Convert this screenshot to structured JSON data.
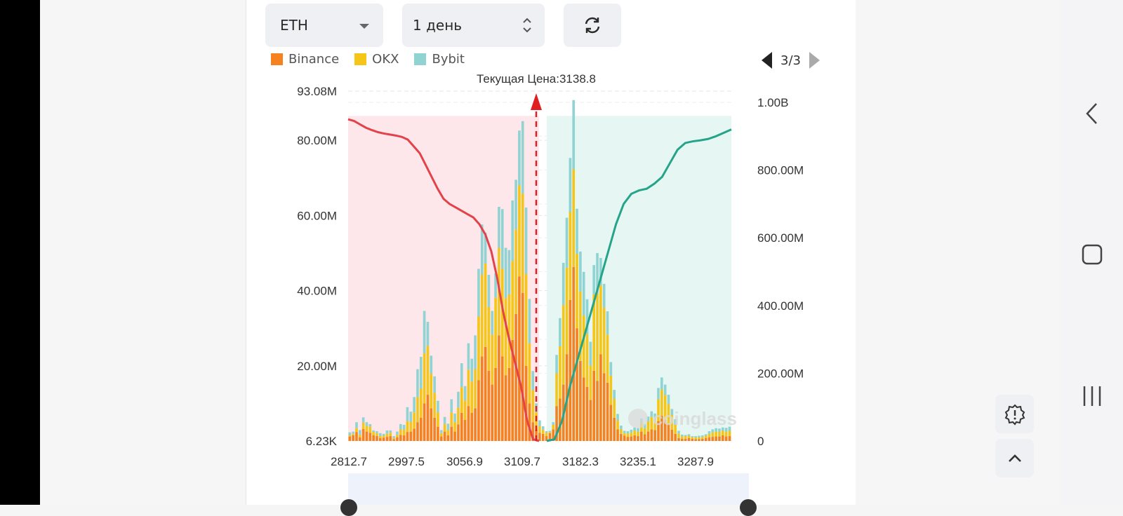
{
  "controls": {
    "coin": "ETH",
    "period": "1 день",
    "refresh_icon": "refresh-icon"
  },
  "legend": [
    {
      "name": "Binance",
      "color": "#f5821f"
    },
    {
      "name": "OKX",
      "color": "#f5c518"
    },
    {
      "name": "Bybit",
      "color": "#8fd3d3"
    }
  ],
  "pager": {
    "text": "3/3"
  },
  "chart_data": {
    "type": "bar",
    "title": "Текущая Цена:3138.8",
    "current_price": 3138.8,
    "x_ticks": [
      "2812.7",
      "2997.5",
      "3056.9",
      "3109.7",
      "3182.3",
      "3235.1",
      "3287.9"
    ],
    "y_left": {
      "ticks": [
        "6.23K",
        "20.00M",
        "40.00M",
        "60.00M",
        "80.00M",
        "93.08M"
      ],
      "min": 0.00623,
      "max": 93.08,
      "unit": "M"
    },
    "y_right": {
      "ticks": [
        "0",
        "200.00M",
        "400.00M",
        "600.00M",
        "800.00M",
        "1.00B"
      ],
      "min": 0,
      "max": 1000,
      "unit": "M"
    },
    "watermark": "coinglass",
    "series": [
      {
        "name": "Binance",
        "values": [
          1.2,
          1.5,
          2.4,
          1,
          3.2,
          2.5,
          2.2,
          1.5,
          1.3,
          0.8,
          0.9,
          1.1,
          1.3,
          0.5,
          1,
          1.6,
          1.5,
          2.4,
          2.5,
          3.3,
          5,
          6.2,
          10,
          12.3,
          8.7,
          6.2,
          3.8,
          1.2,
          2.5,
          1.5,
          3.8,
          2.5,
          4.4,
          7.5,
          5.6,
          9.3,
          7.5,
          8.7,
          16.2,
          22.5,
          25,
          18.7,
          15,
          19.4,
          28.1,
          22.5,
          17.5,
          19.4,
          26.9,
          33.8,
          43.8,
          39.4,
          20,
          10,
          5,
          3.1,
          2.2,
          1.9,
          1.3,
          2.1,
          3.1,
          9.3,
          11.3,
          15,
          23.1,
          37.5,
          46.3,
          30,
          21.3,
          16.9,
          14.4,
          10.9,
          18.7,
          16,
          23.1,
          18,
          15.5,
          9.6,
          6.2,
          3.1,
          1.9,
          1.4,
          1.1,
          1.2,
          1.5,
          1.3,
          2.5,
          1.8,
          2.5,
          3.1,
          2.9,
          5.3,
          6.7,
          5.7,
          4.5,
          3,
          1.9,
          0.8,
          0.6,
          0.6,
          0.8,
          0.6,
          0.5,
          0.5,
          0.6,
          0.8,
          1,
          1.1,
          1.2,
          1.2,
          1.5,
          1.2,
          1.3
        ]
      },
      {
        "name": "OKX",
        "values": [
          0.3,
          0.4,
          1,
          0.7,
          1.7,
          1.5,
          1.6,
          0.9,
          0.8,
          0.5,
          0.5,
          0.8,
          0.9,
          0.3,
          0.6,
          1.5,
          1.5,
          2.9,
          2.6,
          4.3,
          6.7,
          7.7,
          13.3,
          13,
          9.2,
          6.6,
          3.8,
          0.9,
          2,
          1.4,
          3.8,
          2.5,
          4.5,
          6.8,
          5.2,
          9.7,
          8.3,
          10.4,
          16.9,
          21.8,
          22.2,
          17,
          13.3,
          18.7,
          23.3,
          23.3,
          20.5,
          19.6,
          21,
          22.5,
          24.2,
          26.4,
          24.4,
          16,
          8.5,
          4.5,
          1.8,
          1.1,
          0.9,
          0.3,
          1.2,
          8.7,
          13.9,
          21.2,
          23,
          23.4,
          26,
          19.8,
          18.5,
          16.5,
          14.1,
          9.2,
          20.3,
          23.4,
          18.3,
          17.5,
          12.8,
          7.8,
          5,
          2.4,
          1.3,
          0.7,
          0.9,
          1,
          1.3,
          1.2,
          2.3,
          1.6,
          2.7,
          3.3,
          2.9,
          5.8,
          7,
          6.5,
          5.3,
          3.9,
          2.4,
          1.2,
          0.6,
          0.7,
          0.6,
          0.4,
          0.5,
          0.5,
          0.5,
          0.6,
          0.9,
          1.2,
          1.3,
          1.3,
          1.2,
          1.3,
          1.4
        ]
      },
      {
        "name": "Bybit",
        "values": [
          0.8,
          0.6,
          1.6,
          1.2,
          1.4,
          1,
          0.7,
          0.4,
          0.5,
          0.8,
          0.5,
          0.9,
          0.6,
          0.5,
          0.9,
          1.4,
          1.3,
          3.7,
          2.7,
          4.1,
          7.4,
          8.5,
          11.3,
          6.4,
          4.8,
          4.4,
          3.1,
          0.8,
          1.9,
          1.7,
          3.5,
          2.3,
          4.2,
          6.4,
          3.8,
          7,
          6.1,
          9,
          12.7,
          13.3,
          8.2,
          8.5,
          6.3,
          6.5,
          10.9,
          15.9,
          13.4,
          11.8,
          16.1,
          13.2,
          14.6,
          19.3,
          17.7,
          11.8,
          5.1,
          2.4,
          1.5,
          0.9,
          0.4,
          0.3,
          0.7,
          4.9,
          7.5,
          11.2,
          13.3,
          14.4,
          18.4,
          12,
          10.6,
          11.6,
          9.2,
          6.3,
          7.8,
          10.6,
          7.3,
          6.3,
          6.2,
          3.6,
          2.4,
          1.7,
          0.9,
          0.6,
          0.6,
          0.8,
          0.8,
          0.9,
          1.2,
          1.1,
          1.3,
          1.5,
          1.5,
          3,
          3.2,
          2.8,
          2.5,
          1.6,
          1.5,
          0.7,
          0.5,
          0.3,
          0.4,
          0.3,
          0.3,
          0.4,
          0.4,
          0.4,
          0.7,
          0.8,
          0.9,
          0.8,
          0.9,
          1,
          1.1
        ]
      }
    ],
    "cumulative_bid_M": [
      950,
      945,
      935,
      925,
      918,
      912,
      908,
      905,
      902,
      898,
      890,
      870,
      850,
      815,
      780,
      745,
      715,
      700,
      690,
      680,
      670,
      660,
      640,
      610,
      560,
      480,
      380,
      300,
      230,
      160,
      60,
      5,
      0
    ],
    "cumulative_ask_M": [
      0,
      5,
      60,
      160,
      240,
      320,
      400,
      480,
      560,
      640,
      700,
      730,
      740,
      745,
      760,
      780,
      820,
      860,
      880,
      885,
      888,
      892,
      900,
      910,
      920
    ]
  }
}
